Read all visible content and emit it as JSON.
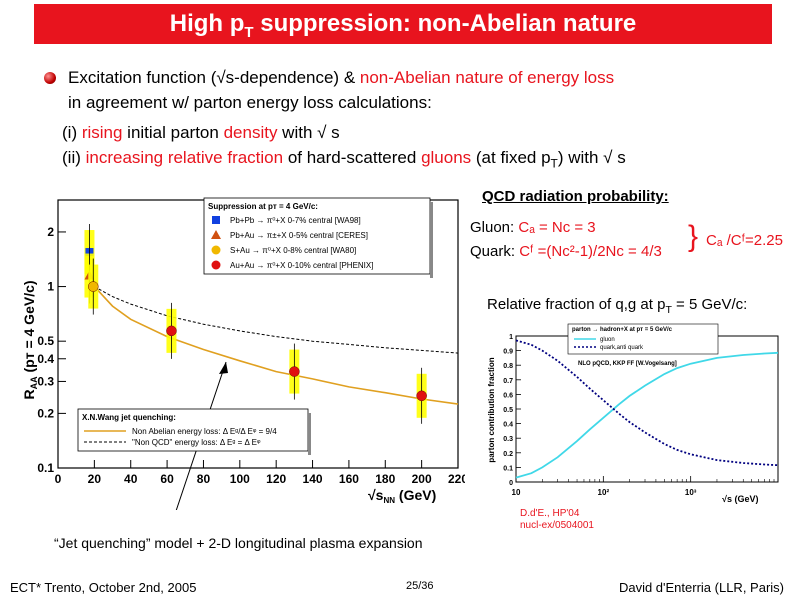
{
  "title": {
    "main": "High p",
    "sub": "T",
    "rest": " suppression: non-Abelian nature"
  },
  "bullet": {
    "line1_a": "Excitation function (√s-dependence) & ",
    "line1_b": "non-Abelian nature of energy loss",
    "line2": "in agreement w/ parton energy loss calculations:"
  },
  "item_i": {
    "a": "(i) ",
    "b": "rising",
    "c": " initial parton ",
    "d": "density",
    "e": " with √ s"
  },
  "item_ii": {
    "a": "(ii) ",
    "b": "increasing relative fraction",
    "c": " of hard-scattered ",
    "d": "gluons",
    "e": " (at fixed p",
    "f": "T",
    ")": ")",
    "g": ") with √ s"
  },
  "qcd": {
    "heading": "QCD radiation probability:",
    "gluon_label": "Gluon: ",
    "gluon_expr": "Cₐ = Nᴄ = 3",
    "quark_label": "Quark: ",
    "quark_expr": "Cᶠ =(Nᴄ²-1)/2Nᴄ = 4/3",
    "ratio": "Cₐ /Cᶠ=2.25",
    "relfrac": "Relative fraction of q,g at p",
    "relfrac_sub": "T",
    "relfrac_rest": " = 5 GeV/c:"
  },
  "left_chart_meta": {
    "ylabel": "R",
    "ylabel_sub": "AA",
    "ylabel_rest": " (pᴛ = 4 GeV/c)",
    "xlabel": "√s",
    "xlabel_sub": "NN",
    "xlabel_rest": " (GeV)",
    "legend_title": "Suppression at pᴛ = 4 GeV/c:",
    "wang_title": "X.N.Wang jet quenching:",
    "caption": "“Jet quenching” model + 2-D longitudinal plasma expansion"
  },
  "right_chart_meta": {
    "ylabel": "parton contribution fraction",
    "xlabel": "√s (GeV)",
    "legend_title": "parton → hadron+X at pᴛ = 5 GeV/c",
    "model": "NLO pQCD, KKP FF [W.Vogelsang]",
    "ref1": "D.d'E., HP'04",
    "ref2": "nucl-ex/0504001"
  },
  "footer": {
    "left": "ECT* Trento, October 2nd, 2005",
    "center": "25/36",
    "right": "David d'Enterria (LLR, Paris)"
  },
  "colors": {
    "accent": "#e8141e",
    "orange": "#e0a020",
    "cyan": "#40d8e8",
    "navy": "#000080"
  },
  "chart_data": [
    {
      "type": "scatter",
      "xlim": [
        0,
        220
      ],
      "ylim": [
        0.1,
        3
      ],
      "yscale": "log",
      "xticks": [
        0,
        20,
        40,
        60,
        80,
        100,
        120,
        140,
        160,
        180,
        200,
        220
      ],
      "yticks": [
        0.1,
        0.2,
        0.3,
        0.4,
        0.5,
        1,
        2
      ],
      "points": [
        {
          "name": "Pb+Pb → π⁰+X  0-7%  central [WA98]",
          "marker": "square",
          "color": "#1040e0",
          "x": 17.3,
          "y": 1.55
        },
        {
          "name": "Pb+Au → π±+X  0-5% central [CERES]",
          "marker": "triangle",
          "color": "#d05010",
          "x": 17.3,
          "y": 1.15
        },
        {
          "name": "S+Au → π⁰+X  0-8% central [WA80]",
          "marker": "circle",
          "color": "#f0b800",
          "x": 19.4,
          "y": 1.0
        },
        {
          "name": "Au+Au → π⁰+X  0-10% central [PHENIX]",
          "marker": "circle",
          "color": "#e01010",
          "x": 62.4,
          "y": 0.57
        },
        {
          "name": "Au+Au → π⁰+X  0-10% central [PHENIX]",
          "marker": "circle",
          "color": "#e01010",
          "x": 130,
          "y": 0.34
        },
        {
          "name": "Au+Au → π⁰+X  0-10% central [PHENIX]",
          "marker": "circle",
          "color": "#e01010",
          "x": 200,
          "y": 0.25
        }
      ],
      "series": [
        {
          "name": "Non Abelian energy loss: Δ Eᵍ/Δ Eᵠ = 9/4",
          "style": "solid",
          "color": "#e0a020",
          "x": [
            20,
            30,
            40,
            60,
            80,
            100,
            120,
            140,
            160,
            180,
            200,
            220
          ],
          "y": [
            1.0,
            0.78,
            0.66,
            0.53,
            0.45,
            0.39,
            0.34,
            0.31,
            0.28,
            0.26,
            0.24,
            0.225
          ]
        },
        {
          "name": "\"Non QCD\" energy loss: Δ Eᵍ = Δ Eᵠ",
          "style": "dashed",
          "color": "#000000",
          "x": [
            20,
            30,
            40,
            60,
            80,
            100,
            120,
            140,
            160,
            180,
            200,
            220
          ],
          "y": [
            1.0,
            0.88,
            0.8,
            0.69,
            0.62,
            0.57,
            0.53,
            0.5,
            0.48,
            0.46,
            0.445,
            0.43
          ]
        }
      ]
    },
    {
      "type": "line",
      "xscale": "log",
      "xlim": [
        10,
        10000
      ],
      "ylim": [
        0,
        1
      ],
      "xticks": [
        10,
        100,
        1000
      ],
      "xtick_labels": [
        "10",
        "10²",
        "10³"
      ],
      "yticks": [
        0,
        0.1,
        0.2,
        0.3,
        0.4,
        0.5,
        0.6,
        0.7,
        0.8,
        0.9,
        1
      ],
      "series": [
        {
          "name": "gluon",
          "style": "solid",
          "color": "#40d8e8",
          "x": [
            10,
            15,
            20,
            30,
            50,
            70,
            100,
            150,
            200,
            300,
            500,
            700,
            1000,
            2000,
            4000,
            7000,
            10000
          ],
          "y": [
            0.03,
            0.06,
            0.1,
            0.17,
            0.28,
            0.36,
            0.44,
            0.53,
            0.59,
            0.66,
            0.74,
            0.78,
            0.81,
            0.85,
            0.87,
            0.88,
            0.885
          ]
        },
        {
          "name": "quark,anti quark",
          "style": "dotted",
          "color": "#000080",
          "x": [
            10,
            15,
            20,
            30,
            50,
            70,
            100,
            150,
            200,
            300,
            500,
            700,
            1000,
            2000,
            4000,
            7000,
            10000
          ],
          "y": [
            0.97,
            0.94,
            0.9,
            0.83,
            0.72,
            0.64,
            0.56,
            0.47,
            0.41,
            0.34,
            0.26,
            0.22,
            0.19,
            0.15,
            0.13,
            0.12,
            0.115
          ]
        }
      ]
    }
  ]
}
